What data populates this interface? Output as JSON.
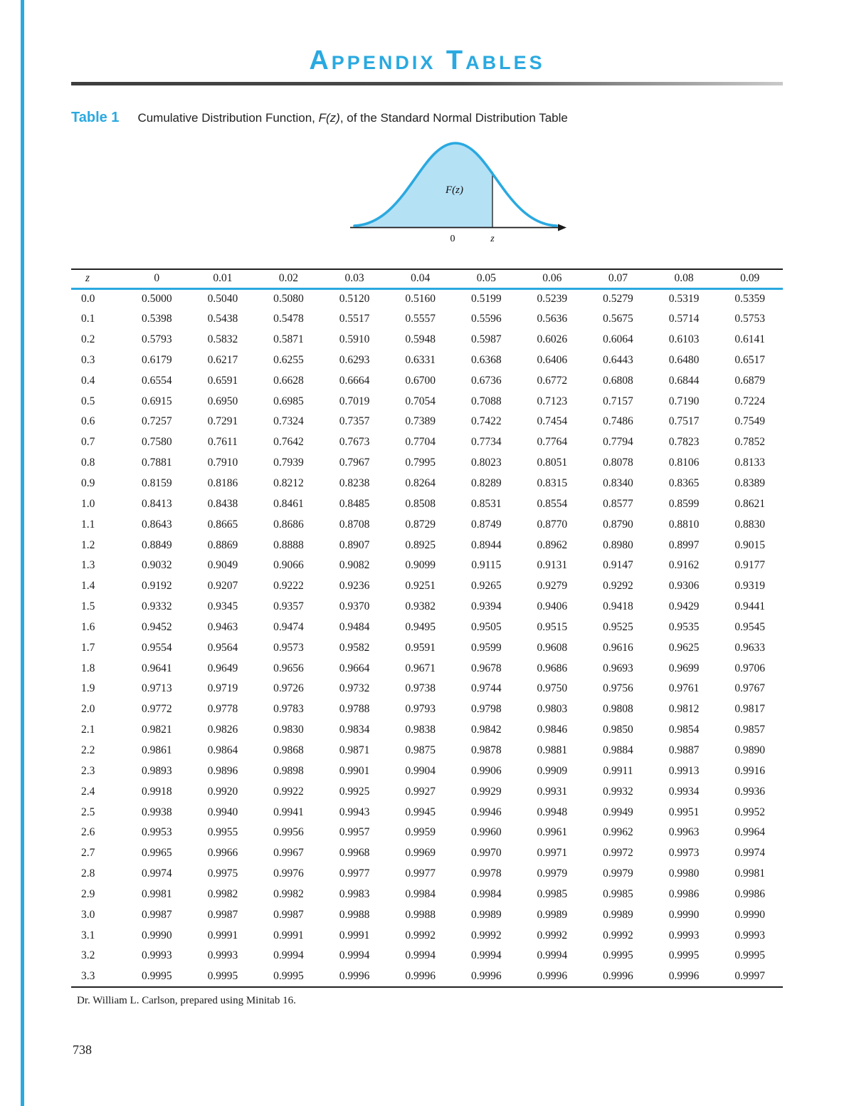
{
  "page": {
    "title": "Appendix Tables",
    "footer_note": "Dr. William L. Carlson, prepared using Minitab 16.",
    "page_number": "738"
  },
  "colors": {
    "accent": "#2AA9E0",
    "curve_fill": "#B5E1F5",
    "text": "#1A1A1A"
  },
  "table1": {
    "label": "Table 1",
    "caption_pre": "Cumulative Distribution Function, ",
    "caption_fz": "F(z)",
    "caption_post": ", of the Standard Normal Distribution Table",
    "diagram": {
      "fz_label": "F(z)",
      "zero_label": "0",
      "z_label": "z"
    },
    "columns": [
      "z",
      "0",
      "0.01",
      "0.02",
      "0.03",
      "0.04",
      "0.05",
      "0.06",
      "0.07",
      "0.08",
      "0.09"
    ],
    "rows": [
      [
        "0.0",
        "0.5000",
        "0.5040",
        "0.5080",
        "0.5120",
        "0.5160",
        "0.5199",
        "0.5239",
        "0.5279",
        "0.5319",
        "0.5359"
      ],
      [
        "0.1",
        "0.5398",
        "0.5438",
        "0.5478",
        "0.5517",
        "0.5557",
        "0.5596",
        "0.5636",
        "0.5675",
        "0.5714",
        "0.5753"
      ],
      [
        "0.2",
        "0.5793",
        "0.5832",
        "0.5871",
        "0.5910",
        "0.5948",
        "0.5987",
        "0.6026",
        "0.6064",
        "0.6103",
        "0.6141"
      ],
      [
        "0.3",
        "0.6179",
        "0.6217",
        "0.6255",
        "0.6293",
        "0.6331",
        "0.6368",
        "0.6406",
        "0.6443",
        "0.6480",
        "0.6517"
      ],
      [
        "0.4",
        "0.6554",
        "0.6591",
        "0.6628",
        "0.6664",
        "0.6700",
        "0.6736",
        "0.6772",
        "0.6808",
        "0.6844",
        "0.6879"
      ],
      [
        "0.5",
        "0.6915",
        "0.6950",
        "0.6985",
        "0.7019",
        "0.7054",
        "0.7088",
        "0.7123",
        "0.7157",
        "0.7190",
        "0.7224"
      ],
      [
        "0.6",
        "0.7257",
        "0.7291",
        "0.7324",
        "0.7357",
        "0.7389",
        "0.7422",
        "0.7454",
        "0.7486",
        "0.7517",
        "0.7549"
      ],
      [
        "0.7",
        "0.7580",
        "0.7611",
        "0.7642",
        "0.7673",
        "0.7704",
        "0.7734",
        "0.7764",
        "0.7794",
        "0.7823",
        "0.7852"
      ],
      [
        "0.8",
        "0.7881",
        "0.7910",
        "0.7939",
        "0.7967",
        "0.7995",
        "0.8023",
        "0.8051",
        "0.8078",
        "0.8106",
        "0.8133"
      ],
      [
        "0.9",
        "0.8159",
        "0.8186",
        "0.8212",
        "0.8238",
        "0.8264",
        "0.8289",
        "0.8315",
        "0.8340",
        "0.8365",
        "0.8389"
      ],
      [
        "1.0",
        "0.8413",
        "0.8438",
        "0.8461",
        "0.8485",
        "0.8508",
        "0.8531",
        "0.8554",
        "0.8577",
        "0.8599",
        "0.8621"
      ],
      [
        "1.1",
        "0.8643",
        "0.8665",
        "0.8686",
        "0.8708",
        "0.8729",
        "0.8749",
        "0.8770",
        "0.8790",
        "0.8810",
        "0.8830"
      ],
      [
        "1.2",
        "0.8849",
        "0.8869",
        "0.8888",
        "0.8907",
        "0.8925",
        "0.8944",
        "0.8962",
        "0.8980",
        "0.8997",
        "0.9015"
      ],
      [
        "1.3",
        "0.9032",
        "0.9049",
        "0.9066",
        "0.9082",
        "0.9099",
        "0.9115",
        "0.9131",
        "0.9147",
        "0.9162",
        "0.9177"
      ],
      [
        "1.4",
        "0.9192",
        "0.9207",
        "0.9222",
        "0.9236",
        "0.9251",
        "0.9265",
        "0.9279",
        "0.9292",
        "0.9306",
        "0.9319"
      ],
      [
        "1.5",
        "0.9332",
        "0.9345",
        "0.9357",
        "0.9370",
        "0.9382",
        "0.9394",
        "0.9406",
        "0.9418",
        "0.9429",
        "0.9441"
      ],
      [
        "1.6",
        "0.9452",
        "0.9463",
        "0.9474",
        "0.9484",
        "0.9495",
        "0.9505",
        "0.9515",
        "0.9525",
        "0.9535",
        "0.9545"
      ],
      [
        "1.7",
        "0.9554",
        "0.9564",
        "0.9573",
        "0.9582",
        "0.9591",
        "0.9599",
        "0.9608",
        "0.9616",
        "0.9625",
        "0.9633"
      ],
      [
        "1.8",
        "0.9641",
        "0.9649",
        "0.9656",
        "0.9664",
        "0.9671",
        "0.9678",
        "0.9686",
        "0.9693",
        "0.9699",
        "0.9706"
      ],
      [
        "1.9",
        "0.9713",
        "0.9719",
        "0.9726",
        "0.9732",
        "0.9738",
        "0.9744",
        "0.9750",
        "0.9756",
        "0.9761",
        "0.9767"
      ],
      [
        "2.0",
        "0.9772",
        "0.9778",
        "0.9783",
        "0.9788",
        "0.9793",
        "0.9798",
        "0.9803",
        "0.9808",
        "0.9812",
        "0.9817"
      ],
      [
        "2.1",
        "0.9821",
        "0.9826",
        "0.9830",
        "0.9834",
        "0.9838",
        "0.9842",
        "0.9846",
        "0.9850",
        "0.9854",
        "0.9857"
      ],
      [
        "2.2",
        "0.9861",
        "0.9864",
        "0.9868",
        "0.9871",
        "0.9875",
        "0.9878",
        "0.9881",
        "0.9884",
        "0.9887",
        "0.9890"
      ],
      [
        "2.3",
        "0.9893",
        "0.9896",
        "0.9898",
        "0.9901",
        "0.9904",
        "0.9906",
        "0.9909",
        "0.9911",
        "0.9913",
        "0.9916"
      ],
      [
        "2.4",
        "0.9918",
        "0.9920",
        "0.9922",
        "0.9925",
        "0.9927",
        "0.9929",
        "0.9931",
        "0.9932",
        "0.9934",
        "0.9936"
      ],
      [
        "2.5",
        "0.9938",
        "0.9940",
        "0.9941",
        "0.9943",
        "0.9945",
        "0.9946",
        "0.9948",
        "0.9949",
        "0.9951",
        "0.9952"
      ],
      [
        "2.6",
        "0.9953",
        "0.9955",
        "0.9956",
        "0.9957",
        "0.9959",
        "0.9960",
        "0.9961",
        "0.9962",
        "0.9963",
        "0.9964"
      ],
      [
        "2.7",
        "0.9965",
        "0.9966",
        "0.9967",
        "0.9968",
        "0.9969",
        "0.9970",
        "0.9971",
        "0.9972",
        "0.9973",
        "0.9974"
      ],
      [
        "2.8",
        "0.9974",
        "0.9975",
        "0.9976",
        "0.9977",
        "0.9977",
        "0.9978",
        "0.9979",
        "0.9979",
        "0.9980",
        "0.9981"
      ],
      [
        "2.9",
        "0.9981",
        "0.9982",
        "0.9982",
        "0.9983",
        "0.9984",
        "0.9984",
        "0.9985",
        "0.9985",
        "0.9986",
        "0.9986"
      ],
      [
        "3.0",
        "0.9987",
        "0.9987",
        "0.9987",
        "0.9988",
        "0.9988",
        "0.9989",
        "0.9989",
        "0.9989",
        "0.9990",
        "0.9990"
      ],
      [
        "3.1",
        "0.9990",
        "0.9991",
        "0.9991",
        "0.9991",
        "0.9992",
        "0.9992",
        "0.9992",
        "0.9992",
        "0.9993",
        "0.9993"
      ],
      [
        "3.2",
        "0.9993",
        "0.9993",
        "0.9994",
        "0.9994",
        "0.9994",
        "0.9994",
        "0.9994",
        "0.9995",
        "0.9995",
        "0.9995"
      ],
      [
        "3.3",
        "0.9995",
        "0.9995",
        "0.9995",
        "0.9996",
        "0.9996",
        "0.9996",
        "0.9996",
        "0.9996",
        "0.9996",
        "0.9997"
      ]
    ]
  }
}
